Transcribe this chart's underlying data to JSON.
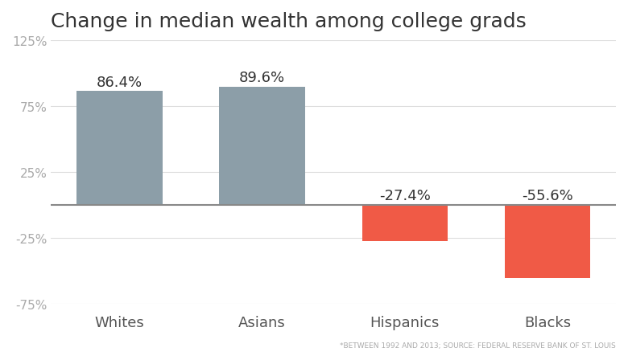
{
  "title": "Change in median wealth among college grads",
  "categories": [
    "Whites",
    "Asians",
    "Hispanics",
    "Blacks"
  ],
  "values": [
    86.4,
    89.6,
    -27.4,
    -55.6
  ],
  "bar_colors": [
    "#8c9ea8",
    "#8c9ea8",
    "#f05a46",
    "#f05a46"
  ],
  "ylim": [
    -75,
    125
  ],
  "yticks": [
    -75,
    -25,
    25,
    75,
    125
  ],
  "ytick_labels": [
    "-75%",
    "-25%",
    "25%",
    "75%",
    "125%"
  ],
  "background_color": "#ffffff",
  "grid_color": "#dddddd",
  "zero_line_color": "#888888",
  "footnote": "*BETWEEN 1992 AND 2013; SOURCE: FEDERAL RESERVE BANK OF ST. LOUIS",
  "title_fontsize": 18,
  "label_fontsize": 13,
  "tick_fontsize": 11,
  "footnote_fontsize": 6.5,
  "bar_width": 0.6,
  "value_label_color_pos": "#333333",
  "value_label_color_neg": "#333333"
}
